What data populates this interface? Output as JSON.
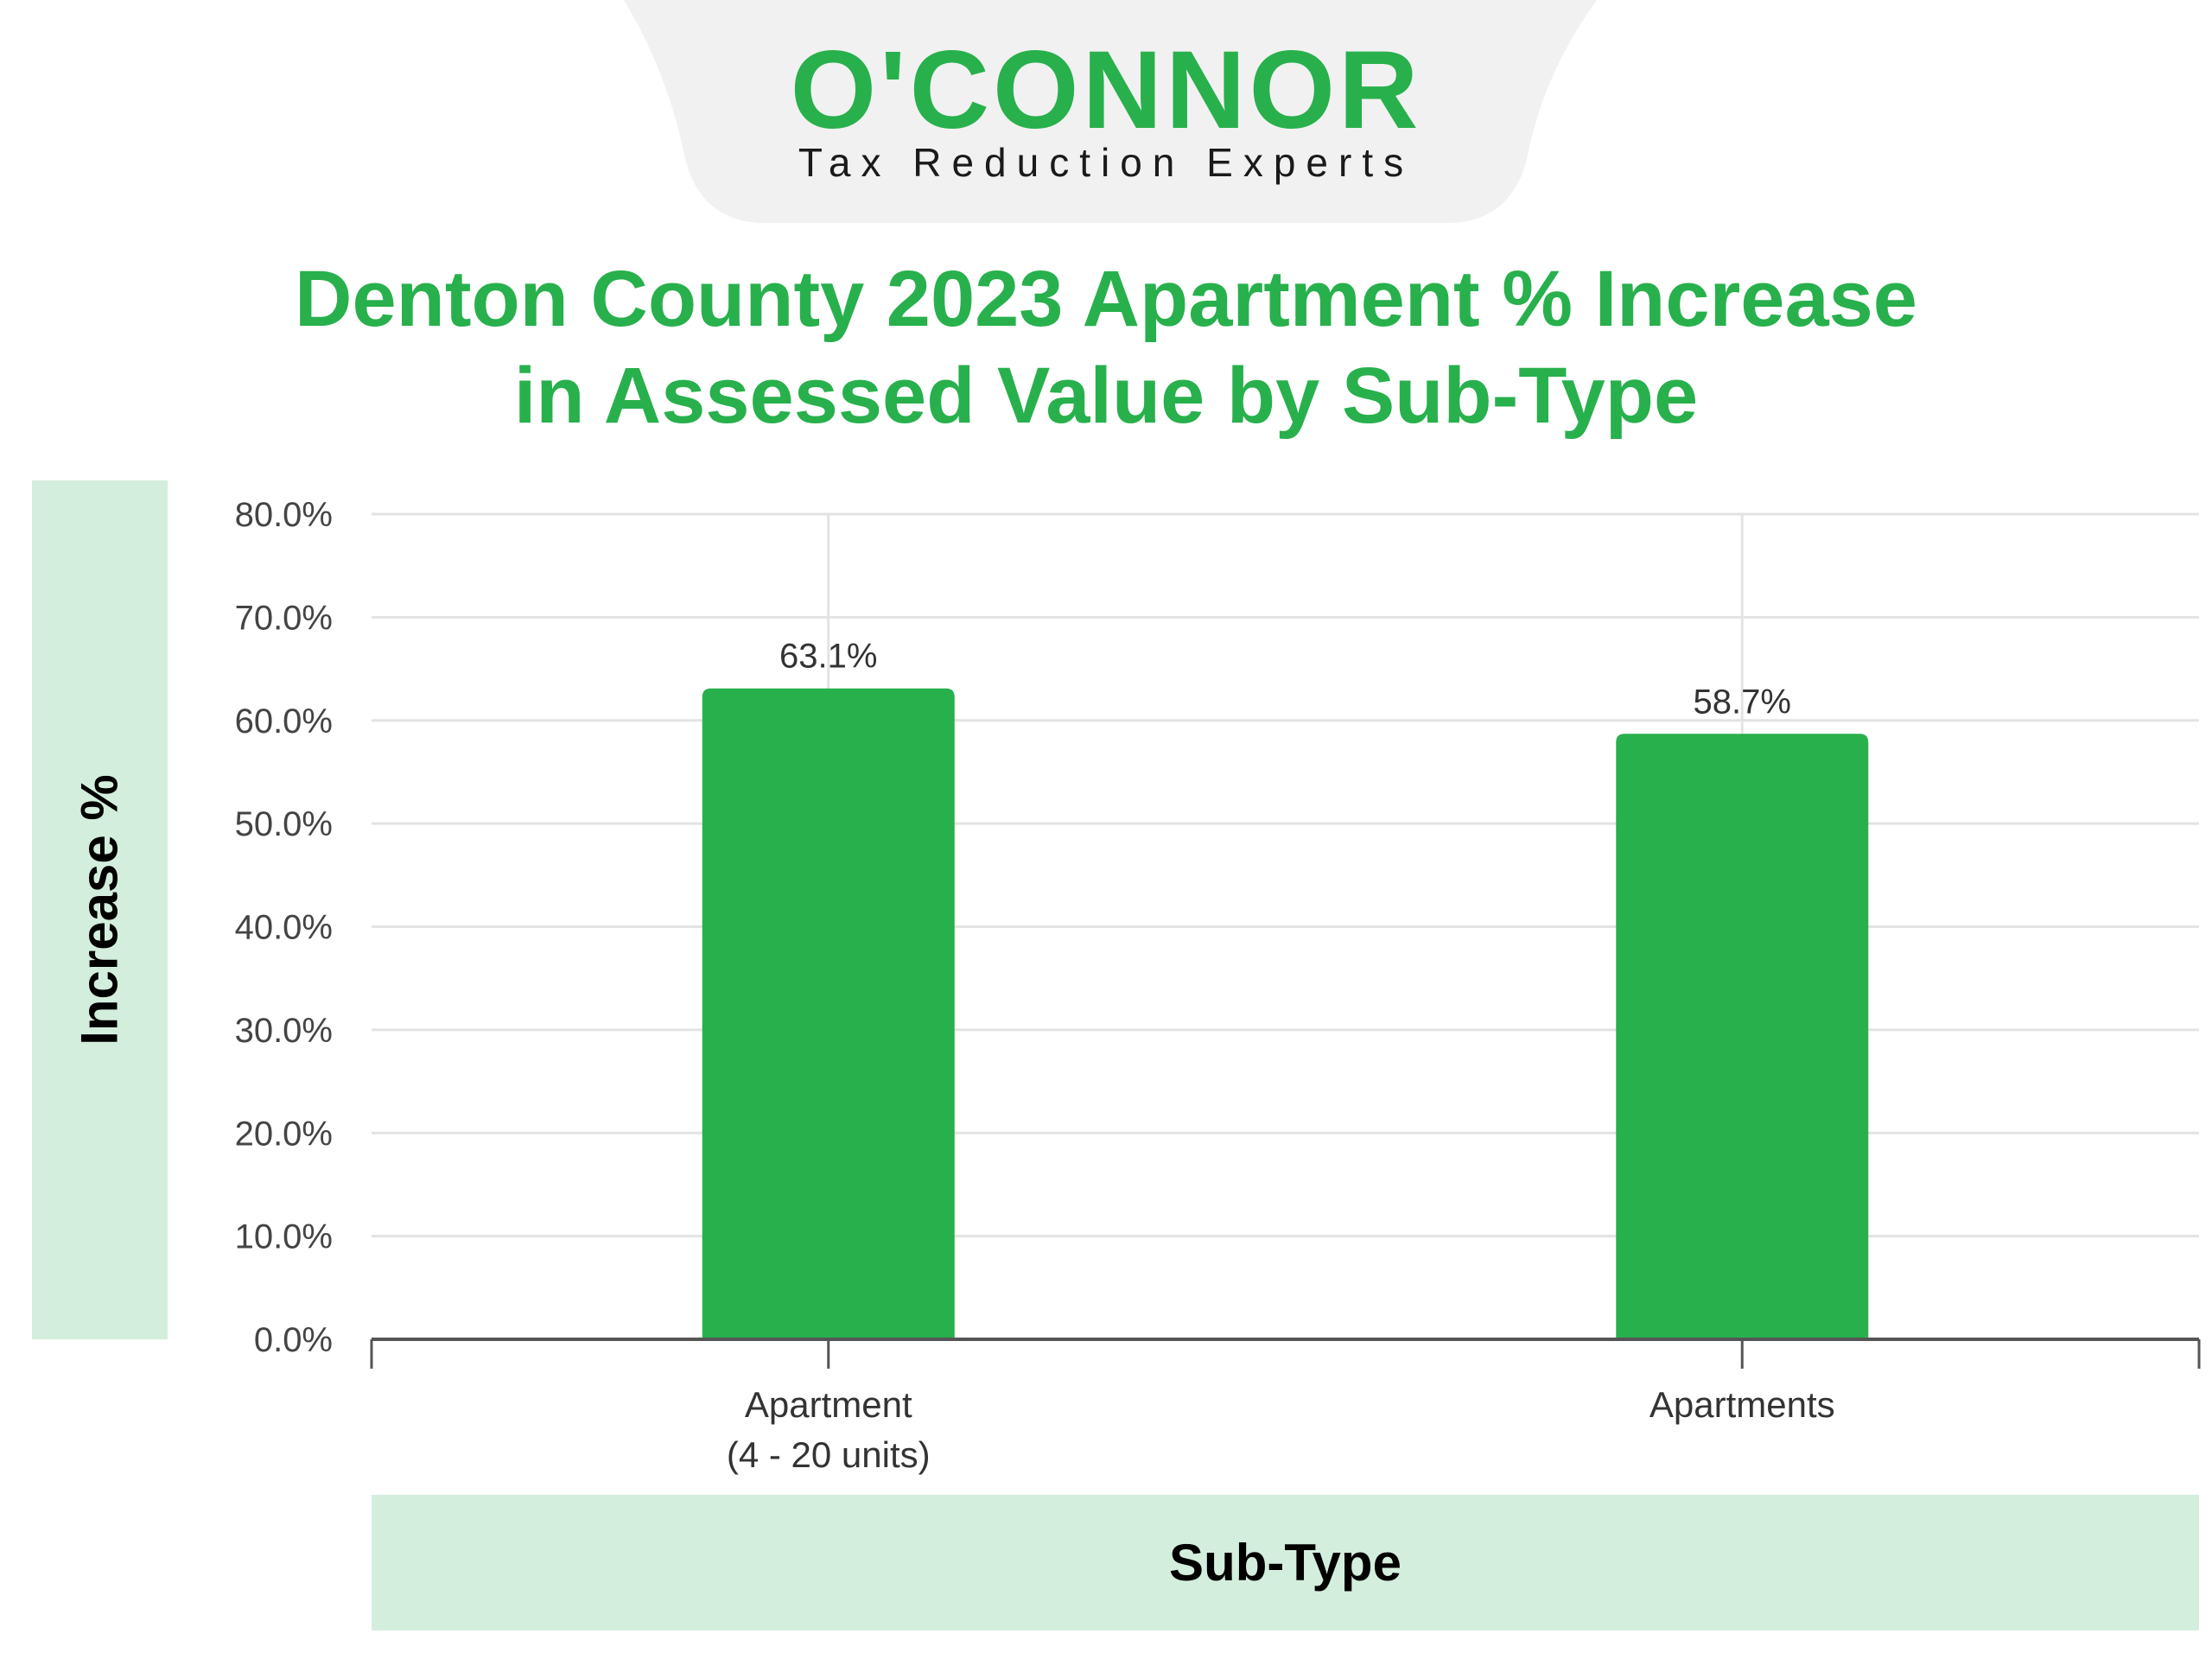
{
  "colors": {
    "brand_green": "#28b04c",
    "panel_light_green": "#d4eedd",
    "logo_tab_gray": "#f1f1f1",
    "gridline": "#e3e3e3",
    "axis": "#555555"
  },
  "logo": {
    "brand": "O'CONNOR",
    "tagline": "Tax Reduction Experts"
  },
  "chart_data": {
    "type": "bar",
    "title_lines": [
      "Denton County 2023 Apartment % Increase",
      "in Assessed Value by Sub-Type"
    ],
    "xlabel": "Sub-Type",
    "ylabel": "Increase %",
    "categories": [
      [
        "Apartment",
        "(4 - 20 units)"
      ],
      [
        "Apartments"
      ]
    ],
    "values": [
      63.1,
      58.7
    ],
    "data_labels": [
      "63.1%",
      "58.7%"
    ],
    "ylim": [
      0,
      80
    ],
    "yticks": [
      0,
      10,
      20,
      30,
      40,
      50,
      60,
      70,
      80
    ],
    "ytick_labels": [
      "0.0%",
      "10.0%",
      "20.0%",
      "30.0%",
      "40.0%",
      "50.0%",
      "60.0%",
      "70.0%",
      "80.0%"
    ],
    "grid": true,
    "legend": "none",
    "bar_color": "#28b04c"
  }
}
